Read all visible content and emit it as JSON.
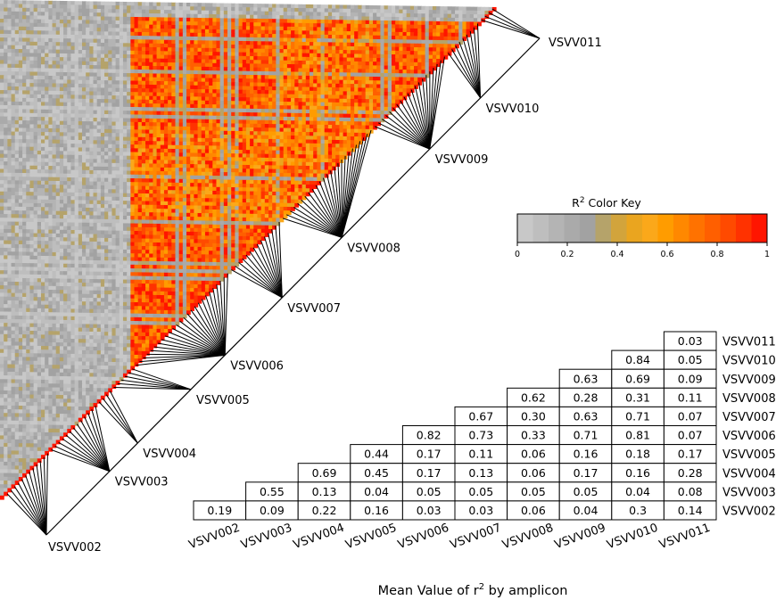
{
  "chart_data": [
    {
      "type": "heatmap",
      "description_key": "ld_triangle",
      "amplicon_labels": [
        "VSVV002",
        "VSVV003",
        "VSVV004",
        "VSVV005",
        "VSVV006",
        "VSVV007",
        "VSVV008",
        "VSVV009",
        "VSVV010",
        "VSVV011"
      ],
      "amplicon_marker_counts": [
        12,
        13,
        4,
        6,
        26,
        14,
        25,
        20,
        9,
        4
      ],
      "color_key": {
        "title_prefix": "R",
        "title_sup": "2",
        "title_suffix": " Color Key",
        "ticks": [
          "0",
          "0.2",
          "0.4",
          "0.6",
          "0.8",
          "1"
        ],
        "range": [
          0,
          1
        ],
        "colors": [
          "#c8c8c8",
          "#bebebe",
          "#b4b4b4",
          "#aaaaaa",
          "#a2a2a2",
          "#b5a36a",
          "#d2a43c",
          "#eaa51f",
          "#fba81a",
          "#ff9c00",
          "#ff8800",
          "#ff7200",
          "#ff5f00",
          "#ff4a00",
          "#ff3200",
          "#ff1500"
        ]
      }
    },
    {
      "type": "table",
      "title": "Mean Value of r",
      "title_sup": "2",
      "title_suffix": " by amplicon",
      "row_labels": [
        "VSVV011",
        "VSVV010",
        "VSVV009",
        "VSVV008",
        "VSVV007",
        "VSVV006",
        "VSVV005",
        "VSVV004",
        "VSVV003",
        "VSVV002"
      ],
      "col_labels": [
        "VSVV002",
        "VSVV003",
        "VSVV004",
        "VSVV005",
        "VSVV006",
        "VSVV007",
        "VSVV008",
        "VSVV009",
        "VSVV010",
        "VSVV011"
      ],
      "rows": [
        [
          "0.03"
        ],
        [
          "0.84",
          "0.05"
        ],
        [
          "0.63",
          "0.69",
          "0.09"
        ],
        [
          "0.62",
          "0.28",
          "0.31",
          "0.11"
        ],
        [
          "0.67",
          "0.30",
          "0.63",
          "0.71",
          "0.07"
        ],
        [
          "0.82",
          "0.73",
          "0.33",
          "0.71",
          "0.81",
          "0.07"
        ],
        [
          "0.44",
          "0.17",
          "0.11",
          "0.06",
          "0.16",
          "0.18",
          "0.17"
        ],
        [
          "0.69",
          "0.45",
          "0.17",
          "0.13",
          "0.06",
          "0.17",
          "0.16",
          "0.28"
        ],
        [
          "0.55",
          "0.13",
          "0.04",
          "0.05",
          "0.05",
          "0.05",
          "0.05",
          "0.04",
          "0.08"
        ],
        [
          "0.19",
          "0.09",
          "0.22",
          "0.16",
          "0.03",
          "0.03",
          "0.06",
          "0.04",
          "0.3",
          "0.14"
        ]
      ]
    }
  ]
}
